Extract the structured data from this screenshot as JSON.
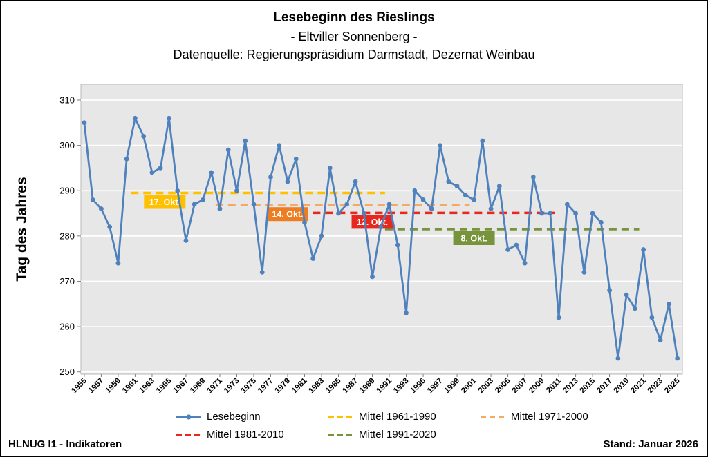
{
  "header": {
    "title": "Lesebeginn des Rieslings",
    "subtitle": "- Eltviller Sonnenberg -",
    "datasource": "Datenquelle: Regierungspräsidium Darmstadt, Dezernat Weinbau"
  },
  "chart_data": {
    "type": "line",
    "title": "Lesebeginn des Rieslings - Eltviller Sonnenberg",
    "xlabel": "",
    "ylabel": "Tag des Jahres",
    "xlim": [
      1954.6,
      2025.6
    ],
    "ylim": [
      249.5,
      313.5
    ],
    "yticks": [
      250,
      260,
      270,
      280,
      290,
      300,
      310
    ],
    "xtick_interval": 2,
    "plot_bg": "#e7e7e7",
    "grid_color": "#ffffff",
    "x": [
      1955,
      1956,
      1957,
      1958,
      1959,
      1960,
      1961,
      1962,
      1963,
      1964,
      1965,
      1966,
      1967,
      1968,
      1969,
      1970,
      1971,
      1972,
      1973,
      1974,
      1975,
      1976,
      1977,
      1978,
      1979,
      1980,
      1981,
      1982,
      1983,
      1984,
      1985,
      1986,
      1987,
      1988,
      1989,
      1990,
      1991,
      1992,
      1993,
      1994,
      1995,
      1996,
      1997,
      1998,
      1999,
      2000,
      2001,
      2002,
      2003,
      2004,
      2005,
      2006,
      2007,
      2008,
      2009,
      2010,
      2011,
      2012,
      2013,
      2014,
      2015,
      2016,
      2017,
      2018,
      2019,
      2020,
      2021,
      2022,
      2023,
      2024,
      2025
    ],
    "series": [
      {
        "name": "Lesebeginn",
        "color": "#4f81bd",
        "values": [
          305,
          288,
          286,
          282,
          274,
          297,
          306,
          302,
          294,
          295,
          306,
          290,
          279,
          287,
          288,
          294,
          286,
          299,
          290,
          301,
          287,
          272,
          293,
          300,
          292,
          297,
          283,
          275,
          280,
          295,
          285,
          287,
          292,
          285,
          271,
          282,
          287,
          278,
          263,
          290,
          288,
          286,
          300,
          292,
          291,
          289,
          288,
          301,
          286,
          291,
          277,
          278,
          274,
          293,
          285,
          285,
          262,
          287,
          285,
          272,
          285,
          283,
          268,
          253,
          267,
          264,
          277,
          262,
          257,
          265,
          253
        ]
      }
    ],
    "mean_lines": [
      {
        "name": "Mittel 1961-1990",
        "label": "17. Okt.",
        "value": 289.5,
        "from": 1961,
        "to": 1990,
        "line_color": "#ffc000",
        "box_color": "#ffc000",
        "label_year": 1964.5
      },
      {
        "name": "Mittel 1971-2000",
        "label": "14. Okt.",
        "value": 286.8,
        "from": 1971,
        "to": 2000,
        "line_color": "#f5a962",
        "box_color": "#ee7d22",
        "label_year": 1979
      },
      {
        "name": "Mittel 1981-2010",
        "label": "12. Okt.",
        "value": 285.1,
        "from": 1981,
        "to": 2010,
        "line_color": "#e8281e",
        "box_color": "#e8281e",
        "label_year": 1989
      },
      {
        "name": "Mittel 1991-2020",
        "label": "8. Okt.",
        "value": 281.5,
        "from": 1991,
        "to": 2020,
        "line_color": "#77933c",
        "box_color": "#77933c",
        "label_year": 2001
      }
    ]
  },
  "legend": {
    "items": [
      {
        "label": "Lesebeginn",
        "color": "#4f81bd",
        "dashed": false,
        "marker": true,
        "icon": "line-with-marker-sample-icon"
      },
      {
        "label": "Mittel 1961-1990",
        "color": "#ffc000",
        "dashed": true,
        "marker": false,
        "icon": "dashed-line-sample-icon"
      },
      {
        "label": "Mittel 1971-2000",
        "color": "#f5a962",
        "dashed": true,
        "marker": false,
        "icon": "dashed-line-sample-icon"
      },
      {
        "label": "Mittel 1981-2010",
        "color": "#e8281e",
        "dashed": true,
        "marker": false,
        "icon": "dashed-line-sample-icon"
      },
      {
        "label": "Mittel 1991-2020",
        "color": "#77933c",
        "dashed": true,
        "marker": false,
        "icon": "dashed-line-sample-icon"
      }
    ]
  },
  "footer": {
    "left": "HLNUG I1 - Indikatoren",
    "right": "Stand: Januar 2026"
  }
}
